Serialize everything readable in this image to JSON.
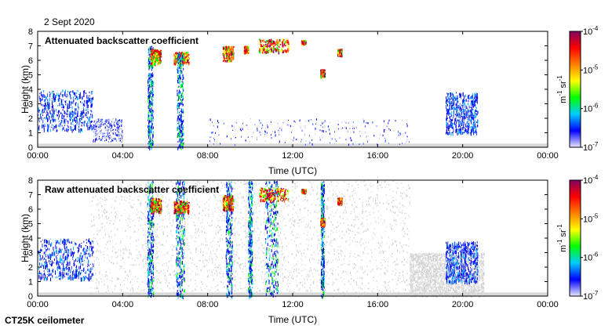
{
  "date": "2 Sept 2020",
  "instrument": "CT25K ceilometer",
  "colorbar": {
    "unit_main": "m",
    "unit_exp1": "-1",
    "unit_mid": " sr",
    "unit_exp2": "-1",
    "ticks": [
      {
        "base": "10",
        "exp": "-4"
      },
      {
        "base": "10",
        "exp": "-5"
      },
      {
        "base": "10",
        "exp": "-6"
      },
      {
        "base": "10",
        "exp": "-7"
      }
    ],
    "scale": "log",
    "range": [
      1e-07,
      0.0001
    ],
    "colors": [
      "#e8e8ff",
      "#0000ff",
      "#00ccff",
      "#00ff00",
      "#ffff00",
      "#ff8000",
      "#ff0000",
      "#800060"
    ]
  },
  "chart_data": [
    {
      "type": "heatmap",
      "title": "Attenuated backscatter coefficient",
      "xlabel": "Time (UTC)",
      "ylabel": "Height (km)",
      "xlim": [
        "00:00",
        "24:00"
      ],
      "ylim": [
        0,
        8
      ],
      "xticks": [
        "00:00",
        "04:00",
        "08:00",
        "12:00",
        "16:00",
        "20:00",
        "00:00"
      ],
      "yticks": [
        "0",
        "1",
        "2",
        "3",
        "4",
        "5",
        "6",
        "7",
        "8"
      ],
      "features": [
        {
          "kind": "boundary-layer",
          "start_h": 0.0,
          "end_h": 2.6,
          "base_km": 1.2,
          "top_km": 4.0
        },
        {
          "kind": "sparse-low",
          "start_h": 2.6,
          "end_h": 4.0,
          "base_km": 0.4,
          "top_km": 2.0
        },
        {
          "kind": "cloud-column",
          "center_h": 5.3,
          "width_h": 0.25,
          "base_km": 0.0,
          "top_km": 7.0
        },
        {
          "kind": "cloud-layer",
          "start_h": 5.3,
          "end_h": 5.8,
          "base_km": 5.8,
          "top_km": 6.8
        },
        {
          "kind": "cloud-layer",
          "start_h": 6.4,
          "end_h": 7.1,
          "base_km": 5.8,
          "top_km": 6.6
        },
        {
          "kind": "cloud-column",
          "center_h": 6.7,
          "width_h": 0.3,
          "base_km": 0.0,
          "top_km": 6.6
        },
        {
          "kind": "cloud-layer",
          "start_h": 8.7,
          "end_h": 9.2,
          "base_km": 6.0,
          "top_km": 7.0
        },
        {
          "kind": "cloud-layer",
          "start_h": 9.7,
          "end_h": 9.9,
          "base_km": 6.6,
          "top_km": 7.0
        },
        {
          "kind": "cloud-layer",
          "start_h": 10.4,
          "end_h": 11.8,
          "base_km": 6.6,
          "top_km": 7.5
        },
        {
          "kind": "cloud-layer",
          "start_h": 12.4,
          "end_h": 12.6,
          "base_km": 7.2,
          "top_km": 7.4
        },
        {
          "kind": "cloud-layer",
          "start_h": 13.3,
          "end_h": 13.5,
          "base_km": 4.9,
          "top_km": 5.4
        },
        {
          "kind": "cloud-layer",
          "start_h": 14.1,
          "end_h": 14.3,
          "base_km": 6.4,
          "top_km": 6.8
        },
        {
          "kind": "sparse-low",
          "start_h": 8.0,
          "end_h": 17.5,
          "base_km": 0.2,
          "top_km": 2.0
        },
        {
          "kind": "boundary-layer",
          "start_h": 19.2,
          "end_h": 20.7,
          "base_km": 1.0,
          "top_km": 3.8
        }
      ]
    },
    {
      "type": "heatmap",
      "title": "Raw attenuated backscatter coefficient",
      "xlabel": "Time (UTC)",
      "ylabel": "Height (km)",
      "xlim": [
        "00:00",
        "24:00"
      ],
      "ylim": [
        0,
        8
      ],
      "xticks": [
        "00:00",
        "04:00",
        "08:00",
        "12:00",
        "16:00",
        "20:00",
        "00:00"
      ],
      "yticks": [
        "0",
        "1",
        "2",
        "3",
        "4",
        "5",
        "6",
        "7",
        "8"
      ],
      "features": [
        {
          "kind": "noise-field",
          "start_h": 2.5,
          "end_h": 17.5,
          "base_km": 0.0,
          "top_km": 8.0
        },
        {
          "kind": "noise-field",
          "start_h": 17.5,
          "end_h": 21.0,
          "base_km": 0.0,
          "top_km": 3.0
        },
        {
          "kind": "boundary-layer",
          "start_h": 0.0,
          "end_h": 2.6,
          "base_km": 1.2,
          "top_km": 4.0
        },
        {
          "kind": "cloud-column",
          "center_h": 5.3,
          "width_h": 0.3,
          "base_km": 0.0,
          "top_km": 8.0
        },
        {
          "kind": "cloud-layer",
          "start_h": 5.3,
          "end_h": 5.8,
          "base_km": 5.8,
          "top_km": 6.8
        },
        {
          "kind": "cloud-column",
          "center_h": 6.7,
          "width_h": 0.4,
          "base_km": 0.0,
          "top_km": 8.0
        },
        {
          "kind": "cloud-layer",
          "start_h": 6.4,
          "end_h": 7.1,
          "base_km": 5.8,
          "top_km": 6.6
        },
        {
          "kind": "cloud-column",
          "center_h": 9.0,
          "width_h": 0.3,
          "base_km": 0.0,
          "top_km": 8.0
        },
        {
          "kind": "cloud-layer",
          "start_h": 8.7,
          "end_h": 9.2,
          "base_km": 6.0,
          "top_km": 7.0
        },
        {
          "kind": "cloud-column",
          "center_h": 10.0,
          "width_h": 0.2,
          "base_km": 0.0,
          "top_km": 8.0
        },
        {
          "kind": "cloud-column",
          "center_h": 11.0,
          "width_h": 0.6,
          "base_km": 0.0,
          "top_km": 8.0
        },
        {
          "kind": "cloud-layer",
          "start_h": 10.4,
          "end_h": 11.8,
          "base_km": 6.6,
          "top_km": 7.5
        },
        {
          "kind": "cloud-layer",
          "start_h": 12.4,
          "end_h": 12.6,
          "base_km": 7.2,
          "top_km": 7.4
        },
        {
          "kind": "cloud-column",
          "center_h": 13.4,
          "width_h": 0.15,
          "base_km": 0.0,
          "top_km": 8.0
        },
        {
          "kind": "cloud-layer",
          "start_h": 13.3,
          "end_h": 13.5,
          "base_km": 4.9,
          "top_km": 5.4
        },
        {
          "kind": "cloud-layer",
          "start_h": 14.1,
          "end_h": 14.3,
          "base_km": 6.4,
          "top_km": 6.8
        },
        {
          "kind": "boundary-layer",
          "start_h": 19.2,
          "end_h": 20.7,
          "base_km": 1.0,
          "top_km": 3.8
        }
      ]
    }
  ]
}
